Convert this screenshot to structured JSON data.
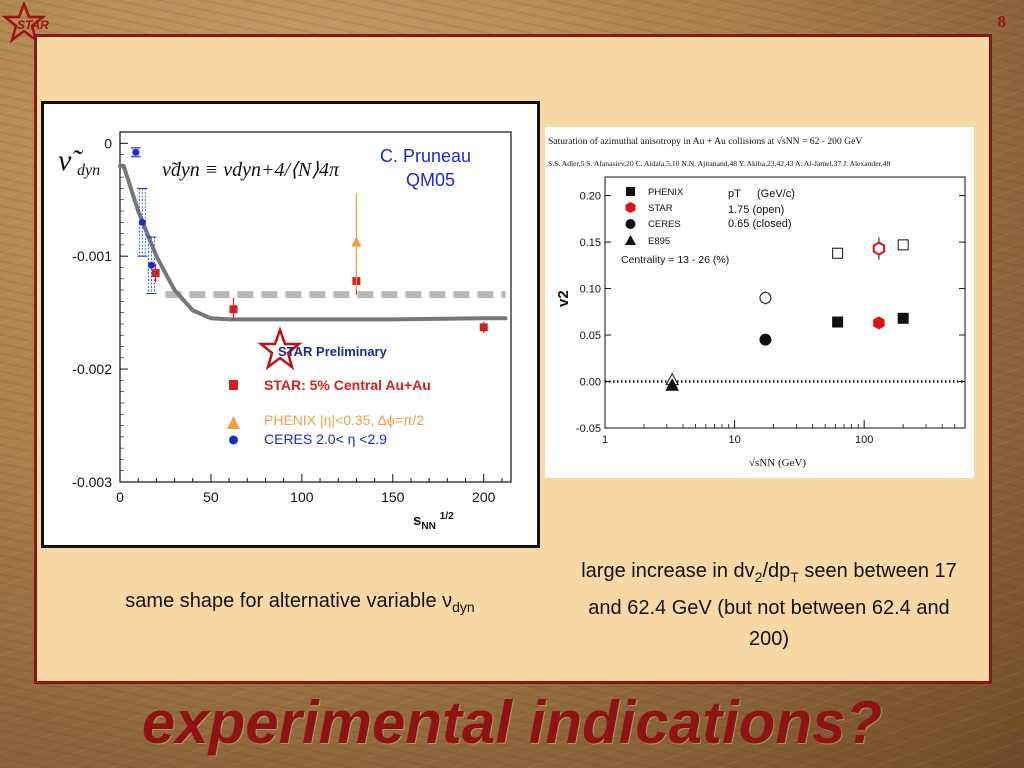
{
  "slide": {
    "page_number": "8",
    "logo_text": "STAR",
    "title": "experimental indications?",
    "caption_left_prefix": "same shape for alternative variable ",
    "caption_left_symbol": "ν",
    "caption_left_sub": "dyn",
    "caption_right": {
      "t1": "large increase in dv",
      "s1": "2",
      "t2": "/dp",
      "s2": "T",
      "t3": " seen between 17 and 62.4 GeV (but not between 62.4 and 200)"
    }
  },
  "left_figure": {
    "ylabel_symbol": "ν̃",
    "ylabel_sub": "dyn",
    "formula": "ν̃dyn ≡ νdyn+4/⟨N⟩4π",
    "author": "C. Pruneau",
    "conference": "QM05",
    "preliminary_label": "STAR Preliminary",
    "legend": [
      {
        "label": "STAR: 5% Central Au+Au",
        "color": "#d42020",
        "marker": "square"
      },
      {
        "label": "PHENIX |η|<0.35, Δϕ=π/2",
        "color": "#f0a040",
        "marker": "triangle"
      },
      {
        "label": "CERES 2.0< η <2.9",
        "color": "#1a2ad0",
        "marker": "circle"
      }
    ],
    "xlabel": "sNN1/2"
  },
  "chart_data": [
    {
      "type": "scatter",
      "title": "",
      "xlabel": "sNN1/2",
      "ylabel": "ν̃dyn",
      "xlim": [
        0,
        215
      ],
      "ylim": [
        -0.003,
        0.0001
      ],
      "x_ticks": [
        0,
        50,
        100,
        150,
        200
      ],
      "x_tick_labels": [
        "0",
        "50",
        "100",
        "150",
        "200"
      ],
      "y_ticks": [
        0,
        -0.001,
        -0.002,
        -0.003
      ],
      "y_tick_labels": [
        "0",
        "-0.001",
        "-0.002",
        "-0.003"
      ],
      "series": [
        {
          "name": "STAR: 5% Central Au+Au",
          "color": "#d42020",
          "x": [
            19.6,
            62.4,
            130,
            200
          ],
          "y": [
            -0.00115,
            -0.00147,
            -0.00122,
            -0.00163
          ],
          "err": [
            8e-05,
            0.0001,
            0.00012,
            5e-05
          ]
        },
        {
          "name": "PHENIX |η|<0.35, Δϕ=π/2",
          "color": "#f0a040",
          "x": [
            130
          ],
          "y": [
            -0.00087
          ],
          "err": [
            0.00043
          ]
        },
        {
          "name": "CERES 2.0< η <2.9",
          "color": "#1a2ad0",
          "x": [
            8.7,
            12.3,
            17.3
          ],
          "y": [
            -8e-05,
            -0.0007,
            -0.00108
          ],
          "err": [
            4e-05,
            0.0003,
            0.00025
          ]
        }
      ],
      "curve": {
        "x": [
          0,
          2,
          10,
          20,
          30,
          40,
          50,
          60,
          100,
          150,
          200,
          212
        ],
        "y": [
          -0.0002,
          -0.0002,
          -0.0006,
          -0.001,
          -0.0013,
          -0.00148,
          -0.00155,
          -0.00156,
          -0.00156,
          -0.00156,
          -0.00155,
          -0.00155
        ]
      },
      "reference_line_y": -0.00134
    },
    {
      "type": "scatter",
      "title": "Saturation of azimuthal anisotropy in Au + Au collisions at √sNN = 62 - 200 GeV",
      "authors": "S.S. Adler,5 S. Afanasiev,20 C. Aidala,5,10 N.N. Ajitanand,48 Y. Akiba,23,42,43 A. Al-Jamel,37 J. Alexander,48",
      "xlabel": "√sNN (GeV)",
      "ylabel": "v2",
      "x_scale": "log",
      "xlim": [
        1,
        600
      ],
      "ylim": [
        -0.05,
        0.22
      ],
      "x_ticks": [
        1,
        10,
        100
      ],
      "x_tick_labels": [
        "1",
        "10",
        "100"
      ],
      "y_ticks": [
        -0.05,
        0.0,
        0.05,
        0.1,
        0.15,
        0.2
      ],
      "y_tick_labels": [
        "-0.05",
        "0.00",
        "0.05",
        "0.10",
        "0.15",
        "0.20"
      ],
      "legend": [
        {
          "label": "PHENIX",
          "marker": "square"
        },
        {
          "label": "STAR",
          "marker": "hexagon"
        },
        {
          "label": "CERES",
          "marker": "circle"
        },
        {
          "label": "E895",
          "marker": "triangle"
        }
      ],
      "pt_header": "pT",
      "pt_unit": "(GeV/c)",
      "pt_open": "1.75  (open)",
      "pt_closed": "0.65  (closed)",
      "centrality": "Centrality = 13 - 26 (%)",
      "series": [
        {
          "name": "PHENIX",
          "pt": "1.75",
          "x": [
            62.4,
            200
          ],
          "y": [
            0.138,
            0.147
          ]
        },
        {
          "name": "PHENIX",
          "pt": "0.65",
          "x": [
            62.4,
            200
          ],
          "y": [
            0.064,
            0.068
          ]
        },
        {
          "name": "STAR",
          "pt": "1.75",
          "x": [
            130
          ],
          "y": [
            0.143
          ],
          "err": [
            0.012
          ]
        },
        {
          "name": "STAR",
          "pt": "0.65",
          "x": [
            130
          ],
          "y": [
            0.063
          ]
        },
        {
          "name": "CERES",
          "pt": "1.75",
          "x": [
            17.3
          ],
          "y": [
            0.09
          ],
          "err": [
            0.007
          ]
        },
        {
          "name": "CERES",
          "pt": "0.65",
          "x": [
            17.3
          ],
          "y": [
            0.045
          ]
        },
        {
          "name": "E895",
          "pt": "1.75",
          "x": [
            3.3
          ],
          "y": [
            0.002
          ]
        },
        {
          "name": "E895",
          "pt": "0.65",
          "x": [
            3.3
          ],
          "y": [
            -0.004
          ]
        }
      ]
    }
  ]
}
